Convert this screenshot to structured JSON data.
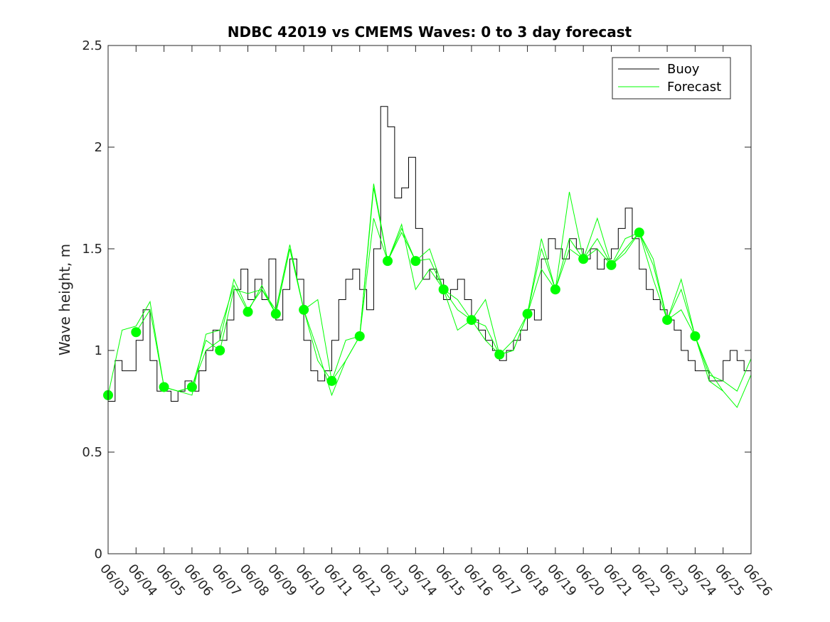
{
  "chart_data": {
    "type": "line",
    "title": "NDBC 42019 vs CMEMS Waves: 0 to 3 day forecast",
    "xlabel": "",
    "ylabel": "Wave height, m",
    "ylim": [
      0,
      2.5
    ],
    "xlim": [
      0,
      23
    ],
    "yticks": [
      0,
      0.5,
      1,
      1.5,
      2,
      2.5
    ],
    "yticklabels": [
      "0",
      "0.5",
      "1",
      "1.5",
      "2",
      "2.5"
    ],
    "xticks": [
      0,
      1,
      2,
      3,
      4,
      5,
      6,
      7,
      8,
      9,
      10,
      11,
      12,
      13,
      14,
      15,
      16,
      17,
      18,
      19,
      20,
      21,
      22,
      23
    ],
    "xticklabels": [
      "06/03",
      "06/04",
      "06/05",
      "06/06",
      "06/07",
      "06/08",
      "06/09",
      "06/10",
      "06/11",
      "06/12",
      "06/13",
      "06/14",
      "06/15",
      "06/16",
      "06/17",
      "06/18",
      "06/19",
      "06/20",
      "06/21",
      "06/22",
      "06/23",
      "06/24",
      "06/25",
      "06/26"
    ],
    "legend": {
      "location": "top-right",
      "entries": [
        "Buoy",
        "Forecast"
      ]
    },
    "colors": {
      "buoy": "#000000",
      "forecast": "#00ff00",
      "axes": "#262626"
    },
    "series": [
      {
        "name": "Buoy",
        "color": "#000000",
        "x": [
          0,
          0.25,
          0.5,
          0.75,
          1,
          1.25,
          1.5,
          1.75,
          2,
          2.25,
          2.5,
          2.75,
          3,
          3.25,
          3.5,
          3.75,
          4,
          4.25,
          4.5,
          4.75,
          5,
          5.25,
          5.5,
          5.75,
          6,
          6.25,
          6.5,
          6.75,
          7,
          7.25,
          7.5,
          7.75,
          8,
          8.25,
          8.5,
          8.75,
          9,
          9.25,
          9.5,
          9.75,
          10,
          10.25,
          10.5,
          10.75,
          11,
          11.25,
          11.5,
          11.75,
          12,
          12.25,
          12.5,
          12.75,
          13,
          13.25,
          13.5,
          13.75,
          14,
          14.25,
          14.5,
          14.75,
          15,
          15.25,
          15.5,
          15.75,
          16,
          16.25,
          16.5,
          16.75,
          17,
          17.25,
          17.5,
          17.75,
          18,
          18.25,
          18.5,
          18.75,
          19,
          19.25,
          19.5,
          19.75,
          20,
          20.25,
          20.5,
          20.75,
          21,
          21.25,
          21.5,
          21.75,
          22,
          22.25,
          22.5,
          22.75
        ],
        "values": [
          0.75,
          0.95,
          0.9,
          0.9,
          1.05,
          1.2,
          0.95,
          0.8,
          0.8,
          0.75,
          0.8,
          0.85,
          0.8,
          0.9,
          1.0,
          1.1,
          1.05,
          1.15,
          1.3,
          1.4,
          1.25,
          1.35,
          1.25,
          1.45,
          1.15,
          1.3,
          1.45,
          1.35,
          1.05,
          0.9,
          0.85,
          0.9,
          1.05,
          1.25,
          1.35,
          1.4,
          1.3,
          1.2,
          1.5,
          2.2,
          2.1,
          1.75,
          1.8,
          1.95,
          1.6,
          1.35,
          1.4,
          1.35,
          1.25,
          1.3,
          1.35,
          1.25,
          1.15,
          1.1,
          1.05,
          1.0,
          0.95,
          1.0,
          1.05,
          1.1,
          1.2,
          1.15,
          1.45,
          1.55,
          1.5,
          1.45,
          1.55,
          1.5,
          1.45,
          1.5,
          1.4,
          1.45,
          1.5,
          1.6,
          1.7,
          1.55,
          1.4,
          1.3,
          1.25,
          1.2,
          1.15,
          1.1,
          1.0,
          0.95,
          0.9,
          0.9,
          0.85,
          0.85,
          0.95,
          1.0,
          0.95,
          0.9
        ]
      },
      {
        "name": "Forecast",
        "color": "#00ff00",
        "runs": [
          {
            "x": [
              0,
              0.5,
              1,
              1.5,
              2,
              2.5,
              3
            ],
            "values": [
              0.78,
              1.1,
              1.12,
              1.24,
              0.82,
              0.8,
              0.82
            ]
          },
          {
            "x": [
              1,
              1.5,
              2,
              2.5,
              3,
              3.5,
              4
            ],
            "values": [
              1.09,
              1.2,
              0.82,
              0.8,
              0.82,
              1.05,
              1.0
            ]
          },
          {
            "x": [
              2,
              2.5,
              3,
              3.5,
              4,
              4.5,
              5
            ],
            "values": [
              0.82,
              0.8,
              0.78,
              1.08,
              1.1,
              1.32,
              1.19
            ]
          },
          {
            "x": [
              3,
              3.5,
              4,
              4.5,
              5,
              5.5,
              6
            ],
            "values": [
              0.82,
              1.0,
              1.05,
              1.35,
              1.2,
              1.3,
              1.18
            ]
          },
          {
            "x": [
              4,
              4.5,
              5,
              5.5,
              6,
              6.5,
              7
            ],
            "values": [
              1.0,
              1.3,
              1.28,
              1.3,
              1.2,
              1.52,
              1.2
            ]
          },
          {
            "x": [
              5,
              5.5,
              6,
              6.5,
              7,
              7.5,
              8
            ],
            "values": [
              1.19,
              1.32,
              1.18,
              1.5,
              1.2,
              0.95,
              0.85
            ]
          },
          {
            "x": [
              6,
              6.5,
              7,
              7.5,
              8,
              8.5,
              9
            ],
            "values": [
              1.18,
              1.5,
              1.2,
              1.0,
              0.78,
              0.95,
              1.07
            ]
          },
          {
            "x": [
              7,
              7.5,
              8,
              8.5,
              9,
              9.5,
              10
            ],
            "values": [
              1.2,
              1.25,
              0.85,
              1.05,
              1.07,
              1.65,
              1.44
            ]
          },
          {
            "x": [
              8,
              8.5,
              9,
              9.5,
              10,
              10.5,
              11
            ],
            "values": [
              0.85,
              0.95,
              1.07,
              1.8,
              1.44,
              1.6,
              1.44
            ]
          },
          {
            "x": [
              9,
              9.5,
              10,
              10.5,
              11,
              11.5,
              12
            ],
            "values": [
              1.07,
              1.82,
              1.44,
              1.62,
              1.3,
              1.4,
              1.3
            ]
          },
          {
            "x": [
              10,
              10.5,
              11,
              11.5,
              12,
              12.5,
              13
            ],
            "values": [
              1.44,
              1.58,
              1.44,
              1.45,
              1.3,
              1.2,
              1.15
            ]
          },
          {
            "x": [
              11,
              11.5,
              12,
              12.5,
              13,
              13.5,
              14
            ],
            "values": [
              1.44,
              1.5,
              1.3,
              1.25,
              1.15,
              1.05,
              0.98
            ]
          },
          {
            "x": [
              12,
              12.5,
              13,
              13.5,
              14,
              14.5,
              15
            ],
            "values": [
              1.3,
              1.1,
              1.15,
              1.25,
              0.98,
              1.0,
              1.18
            ]
          },
          {
            "x": [
              13,
              13.5,
              14,
              14.5,
              15,
              15.5,
              16
            ],
            "values": [
              1.15,
              1.12,
              0.98,
              1.05,
              1.18,
              1.4,
              1.3
            ]
          },
          {
            "x": [
              14,
              14.5,
              15,
              15.5,
              16,
              16.5,
              17
            ],
            "values": [
              0.98,
              1.0,
              1.18,
              1.55,
              1.3,
              1.55,
              1.45
            ]
          },
          {
            "x": [
              15,
              15.5,
              16,
              16.5,
              17,
              17.5,
              18
            ],
            "values": [
              1.18,
              1.5,
              1.3,
              1.78,
              1.45,
              1.5,
              1.42
            ]
          },
          {
            "x": [
              16,
              16.5,
              17,
              17.5,
              18,
              18.5,
              19
            ],
            "values": [
              1.3,
              1.5,
              1.45,
              1.65,
              1.42,
              1.5,
              1.58
            ]
          },
          {
            "x": [
              17,
              17.5,
              18,
              18.5,
              19,
              19.5,
              20
            ],
            "values": [
              1.45,
              1.55,
              1.42,
              1.55,
              1.58,
              1.35,
              1.15
            ]
          },
          {
            "x": [
              18,
              18.5,
              19,
              19.5,
              20,
              20.5,
              21
            ],
            "values": [
              1.42,
              1.48,
              1.58,
              1.42,
              1.15,
              1.3,
              1.07
            ]
          },
          {
            "x": [
              19,
              19.5,
              20,
              20.5,
              21,
              21.5,
              22
            ],
            "values": [
              1.58,
              1.45,
              1.15,
              1.2,
              1.07,
              0.85,
              0.8
            ]
          },
          {
            "x": [
              20,
              20.5,
              21,
              21.5,
              22,
              22.5,
              23
            ],
            "values": [
              1.15,
              1.35,
              1.07,
              0.9,
              0.8,
              0.72,
              0.88
            ]
          },
          {
            "x": [
              21,
              21.5,
              22,
              22.5,
              23
            ],
            "values": [
              1.07,
              0.88,
              0.85,
              0.8,
              0.96
            ]
          }
        ],
        "dots": {
          "x": [
            0,
            1,
            2,
            3,
            4,
            5,
            6,
            7,
            8,
            9,
            10,
            11,
            12,
            13,
            14,
            15,
            16,
            17,
            18,
            19,
            20,
            21
          ],
          "values": [
            0.78,
            1.09,
            0.82,
            0.82,
            1.0,
            1.19,
            1.18,
            1.2,
            0.85,
            1.07,
            1.44,
            1.44,
            1.3,
            1.15,
            0.98,
            1.18,
            1.3,
            1.45,
            1.42,
            1.58,
            1.15,
            1.07
          ]
        }
      }
    ]
  }
}
